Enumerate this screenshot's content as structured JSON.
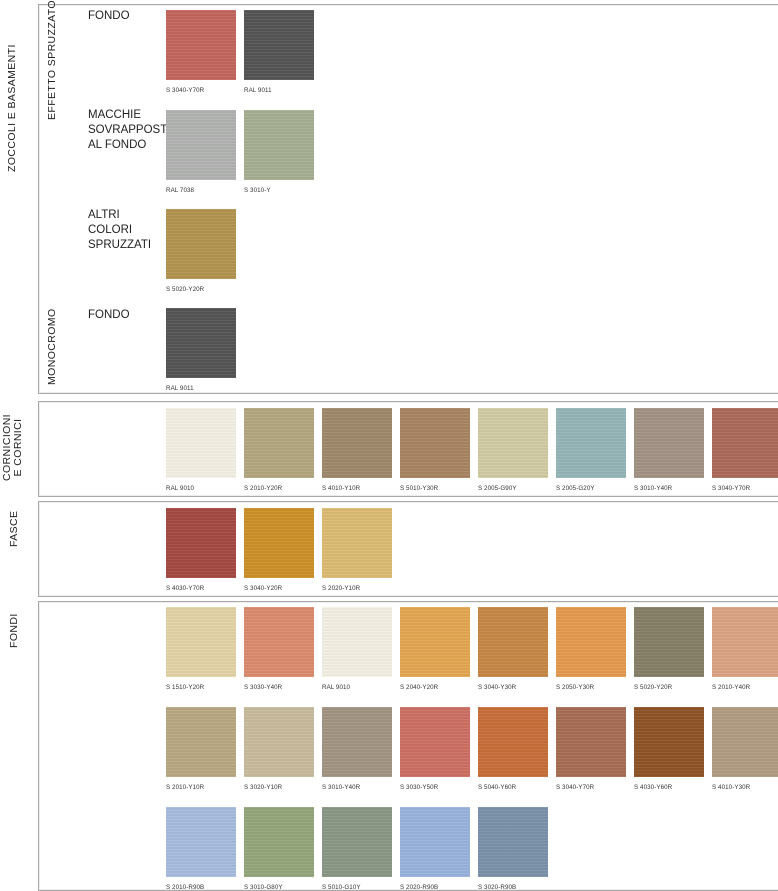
{
  "side_labels": {
    "zoccoli": "ZOCCOLI E BASAMENTI",
    "cornicioni_1": "CORNICIONI",
    "cornicioni_2": "E CORNICI",
    "fasce": "FASCE",
    "fondi": "FONDI"
  },
  "inner_labels": {
    "effetto": "EFFETTO SPRUZZATO",
    "monocromo": "MONOCROMO"
  },
  "sub_labels": {
    "fondo_1": "FONDO",
    "macchie_1": "MACCHIE",
    "macchie_2": "SOVRAPPOSTE",
    "macchie_3": "AL FONDO",
    "altri_1": "ALTRI",
    "altri_2": "COLORI",
    "altri_3": "SPRUZZATI",
    "fondo_2": "FONDO"
  },
  "swatches": {
    "zoccoli_fondo": [
      {
        "code": "S 3040-Y70R",
        "color": "#c2675e"
      },
      {
        "code": "RAL 9011",
        "color": "#555555"
      }
    ],
    "zoccoli_macchie": [
      {
        "code": "RAL 7038",
        "color": "#b1b3b1"
      },
      {
        "code": "S 3010-Y",
        "color": "#a6ae92"
      }
    ],
    "zoccoli_altri": [
      {
        "code": "S 5020-Y20R",
        "color": "#b39450"
      }
    ],
    "zoccoli_monocromo": [
      {
        "code": "RAL 9011",
        "color": "#555555"
      }
    ],
    "cornicioni": [
      {
        "code": "RAL 9010",
        "color": "#f3efe3"
      },
      {
        "code": "S 2010-Y20R",
        "color": "#b4a781"
      },
      {
        "code": "S 4010-Y10R",
        "color": "#a0896c"
      },
      {
        "code": "S 5010-Y30R",
        "color": "#a88462"
      },
      {
        "code": "S 2005-G90Y",
        "color": "#d1cba4"
      },
      {
        "code": "S 2005-G20Y",
        "color": "#94b6b7"
      },
      {
        "code": "S 3010-Y40R",
        "color": "#a39386"
      },
      {
        "code": "S 3040-Y70R",
        "color": "#ac6a5b"
      }
    ],
    "fasce": [
      {
        "code": "S 4030-Y70R",
        "color": "#a44a43"
      },
      {
        "code": "S 3040-Y20R",
        "color": "#cc9128"
      },
      {
        "code": "S 2020-Y10R",
        "color": "#dcbc74"
      }
    ],
    "fondi_row1": [
      {
        "code": "S 1510-Y20R",
        "color": "#e3d3a6"
      },
      {
        "code": "S 3030-Y40R",
        "color": "#dc8b6e"
      },
      {
        "code": "RAL 9010",
        "color": "#f3efe3"
      },
      {
        "code": "S 2040-Y20R",
        "color": "#e4a753"
      },
      {
        "code": "S 3040-Y30R",
        "color": "#c68847"
      },
      {
        "code": "S 2050-Y30R",
        "color": "#e49a50"
      },
      {
        "code": "S 5020-Y20R",
        "color": "#868068"
      },
      {
        "code": "S 2010-Y40R",
        "color": "#dba485"
      }
    ],
    "fondi_row2": [
      {
        "code": "S 2010-Y10R",
        "color": "#b9a983"
      },
      {
        "code": "S 3020-Y10R",
        "color": "#c8bb9d"
      },
      {
        "code": "S 3010-Y40R",
        "color": "#a39583"
      },
      {
        "code": "S 3030-Y50R",
        "color": "#cc7064"
      },
      {
        "code": "S 5040-Y60R",
        "color": "#c76e3b"
      },
      {
        "code": "S 3040-Y70R",
        "color": "#a76d55"
      },
      {
        "code": "S 4030-Y60R",
        "color": "#8f5427"
      },
      {
        "code": "S 4010-Y30R",
        "color": "#b29c83"
      }
    ],
    "fondi_row3": [
      {
        "code": "S 2010-R90B",
        "color": "#a7bddf"
      },
      {
        "code": "S 3010-G80Y",
        "color": "#95a67c"
      },
      {
        "code": "S 5010-G10Y",
        "color": "#8a9884"
      },
      {
        "code": "S 2020-R90B",
        "color": "#9ab4dd"
      },
      {
        "code": "S 3020-R90B",
        "color": "#7b92aa"
      }
    ]
  }
}
